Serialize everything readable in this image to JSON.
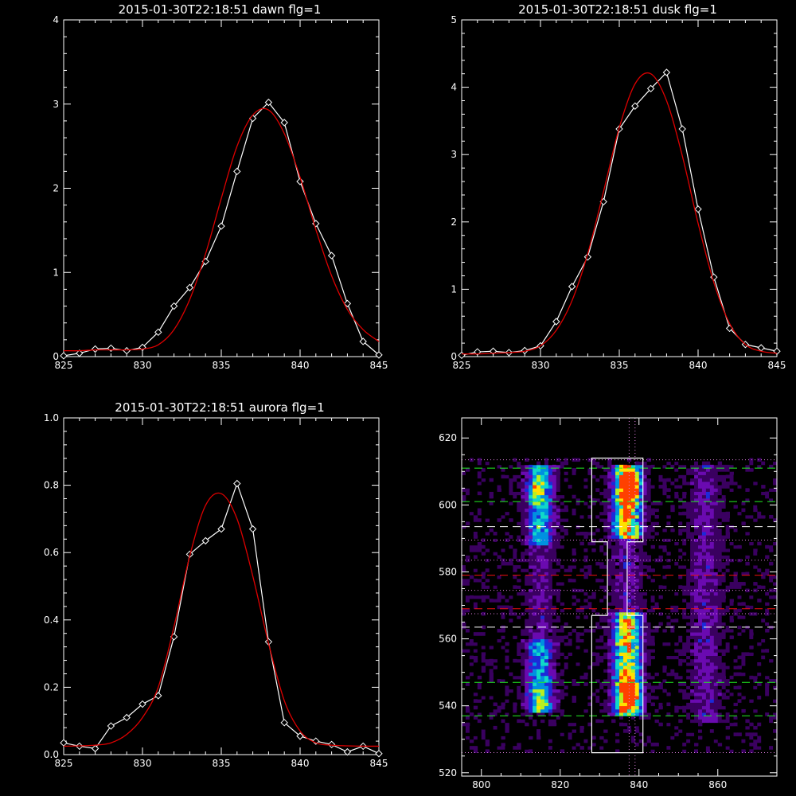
{
  "chart_data": [
    {
      "type": "line",
      "title": "2015-01-30T22:18:51 dawn flg=1",
      "xlim": [
        825,
        845
      ],
      "ylim": [
        0,
        4
      ],
      "xticks": [
        825,
        830,
        835,
        840,
        845
      ],
      "yticks": [
        0,
        1,
        2,
        3,
        4
      ],
      "series": [
        {
          "color": "#ffffff",
          "marker": "diamond",
          "x": [
            825,
            826,
            827,
            828,
            829,
            830,
            831,
            832,
            833,
            834,
            835,
            836,
            837,
            838,
            839,
            840,
            841,
            842,
            843,
            844,
            845
          ],
          "y": [
            0.01,
            0.04,
            0.09,
            0.1,
            0.07,
            0.11,
            0.29,
            0.6,
            0.82,
            1.13,
            1.55,
            2.2,
            2.83,
            3.02,
            2.78,
            2.08,
            1.58,
            1.2,
            0.63,
            0.18,
            0.02
          ]
        },
        {
          "color": "#dd0000",
          "smooth": true,
          "x": [
            825,
            826,
            827,
            828,
            829,
            830,
            831,
            832,
            833,
            834,
            835,
            836,
            837,
            838,
            839,
            840,
            841,
            842,
            843,
            844,
            845
          ],
          "y": [
            0.07,
            0.07,
            0.08,
            0.08,
            0.08,
            0.09,
            0.14,
            0.32,
            0.68,
            1.22,
            1.88,
            2.5,
            2.87,
            2.93,
            2.65,
            2.13,
            1.51,
            0.96,
            0.56,
            0.32,
            0.18
          ]
        }
      ]
    },
    {
      "type": "line",
      "title": "2015-01-30T22:18:51 dusk flg=1",
      "xlim": [
        825,
        845
      ],
      "ylim": [
        0,
        5
      ],
      "xticks": [
        825,
        830,
        835,
        840,
        845
      ],
      "yticks": [
        0,
        1,
        2,
        3,
        4,
        5
      ],
      "series": [
        {
          "color": "#ffffff",
          "marker": "diamond",
          "x": [
            825,
            826,
            827,
            828,
            829,
            830,
            831,
            832,
            833,
            834,
            835,
            836,
            837,
            838,
            839,
            840,
            841,
            842,
            843,
            844,
            845
          ],
          "y": [
            0.02,
            0.07,
            0.08,
            0.06,
            0.09,
            0.16,
            0.52,
            1.04,
            1.48,
            2.3,
            3.38,
            3.72,
            3.98,
            4.22,
            3.38,
            2.19,
            1.18,
            0.42,
            0.18,
            0.13,
            0.08
          ]
        },
        {
          "color": "#dd0000",
          "smooth": true,
          "x": [
            825,
            826,
            827,
            828,
            829,
            830,
            831,
            832,
            833,
            834,
            835,
            836,
            837,
            838,
            839,
            840,
            841,
            842,
            843,
            844,
            845
          ],
          "y": [
            0.04,
            0.04,
            0.05,
            0.06,
            0.08,
            0.16,
            0.39,
            0.83,
            1.53,
            2.45,
            3.4,
            4.05,
            4.2,
            3.8,
            2.98,
            1.98,
            1.1,
            0.49,
            0.18,
            0.08,
            0.05
          ]
        }
      ]
    },
    {
      "type": "line",
      "title": "2015-01-30T22:18:51 aurora flg=1",
      "xlim": [
        825,
        845
      ],
      "ylim": [
        0,
        1.0
      ],
      "xticks": [
        825,
        830,
        835,
        840,
        845
      ],
      "yticks": [
        "0.0",
        "0.2",
        "0.4",
        "0.6",
        "0.8",
        "1.0"
      ],
      "series": [
        {
          "color": "#ffffff",
          "marker": "diamond",
          "x": [
            825,
            826,
            827,
            828,
            829,
            830,
            831,
            832,
            833,
            834,
            835,
            836,
            837,
            838,
            839,
            840,
            841,
            842,
            843,
            844,
            845
          ],
          "y": [
            0.035,
            0.025,
            0.018,
            0.085,
            0.11,
            0.15,
            0.175,
            0.35,
            0.595,
            0.635,
            0.67,
            0.805,
            0.67,
            0.335,
            0.095,
            0.055,
            0.04,
            0.03,
            0.008,
            0.025,
            0.003
          ]
        },
        {
          "color": "#dd0000",
          "smooth": true,
          "x": [
            825,
            826,
            827,
            828,
            829,
            830,
            831,
            832,
            833,
            834,
            835,
            836,
            837,
            838,
            839,
            840,
            841,
            842,
            843,
            844,
            845
          ],
          "y": [
            0.025,
            0.026,
            0.028,
            0.035,
            0.06,
            0.11,
            0.2,
            0.38,
            0.59,
            0.74,
            0.775,
            0.7,
            0.53,
            0.33,
            0.16,
            0.07,
            0.035,
            0.028,
            0.026,
            0.025,
            0.025
          ]
        }
      ]
    },
    {
      "type": "heatmap",
      "xlim": [
        795,
        875
      ],
      "ylim": [
        519,
        626
      ],
      "xticks": [
        800,
        820,
        840,
        860
      ],
      "yticks": [
        520,
        540,
        560,
        580,
        600,
        620
      ],
      "colormap": [
        "#000000",
        "#3a0060",
        "#6a0ab0",
        "#1c2ad8",
        "#0090e0",
        "#10d8c8",
        "#b8f020",
        "#ffe000",
        "#ff4000",
        "#cc0000"
      ],
      "emission_columns": [
        {
          "x": 815,
          "width": 3.5,
          "y_ranges": [
            [
              538,
              560,
              0.55
            ],
            [
              560,
              588,
              0.2
            ],
            [
              588,
              612,
              0.55
            ]
          ]
        },
        {
          "x": 837,
          "width": 3.5,
          "y_ranges": [
            [
              537,
              568,
              0.9
            ],
            [
              568,
              590,
              0.25
            ],
            [
              590,
              612,
              0.95
            ]
          ]
        },
        {
          "x": 857,
          "width": 4,
          "y_ranges": [
            [
              535,
              612,
              0.22
            ]
          ]
        }
      ],
      "hotspots": [
        {
          "x": 838,
          "y": 605,
          "amp": 0.75
        },
        {
          "x": 838,
          "y": 544,
          "amp": 0.7
        },
        {
          "x": 814,
          "y": 604,
          "amp": 0.4
        },
        {
          "x": 815,
          "y": 542,
          "amp": 0.3
        }
      ],
      "box_outline": [
        [
          828,
          614
        ],
        [
          841,
          614
        ],
        [
          841,
          589
        ],
        [
          837,
          589
        ],
        [
          837,
          567
        ],
        [
          841,
          567
        ],
        [
          841,
          526
        ],
        [
          828,
          526
        ],
        [
          828,
          567
        ],
        [
          832,
          567
        ],
        [
          832,
          589
        ],
        [
          828,
          589
        ]
      ],
      "hlines": [
        {
          "y": 611,
          "color": "#22ee22",
          "style": "dashed"
        },
        {
          "y": 601,
          "color": "#22ee22",
          "style": "dashed"
        },
        {
          "y": 593.5,
          "color": "#ffffff",
          "style": "dashed"
        },
        {
          "y": 579,
          "color": "#ee1111",
          "style": "dashed"
        },
        {
          "y": 569,
          "color": "#ee1111",
          "style": "dashed"
        },
        {
          "y": 563.5,
          "color": "#ffffff",
          "style": "dashed"
        },
        {
          "y": 547,
          "color": "#22ee22",
          "style": "dashed"
        },
        {
          "y": 537,
          "color": "#22ee22",
          "style": "dashed"
        },
        {
          "y": 613.5,
          "color": "#e080e0",
          "style": "dotted"
        },
        {
          "y": 589.5,
          "color": "#e080e0",
          "style": "dotted"
        },
        {
          "y": 583.5,
          "color": "#e080e0",
          "style": "dotted"
        },
        {
          "y": 574.5,
          "color": "#e080e0",
          "style": "dotted"
        },
        {
          "y": 567.5,
          "color": "#e080e0",
          "style": "dotted"
        },
        {
          "y": 526,
          "color": "#e080e0",
          "style": "dotted"
        }
      ],
      "vlines": [
        {
          "x": 837.5,
          "color": "#e080e0",
          "style": "dotted"
        },
        {
          "x": 839,
          "color": "#e080e0",
          "style": "dotted"
        }
      ]
    }
  ]
}
